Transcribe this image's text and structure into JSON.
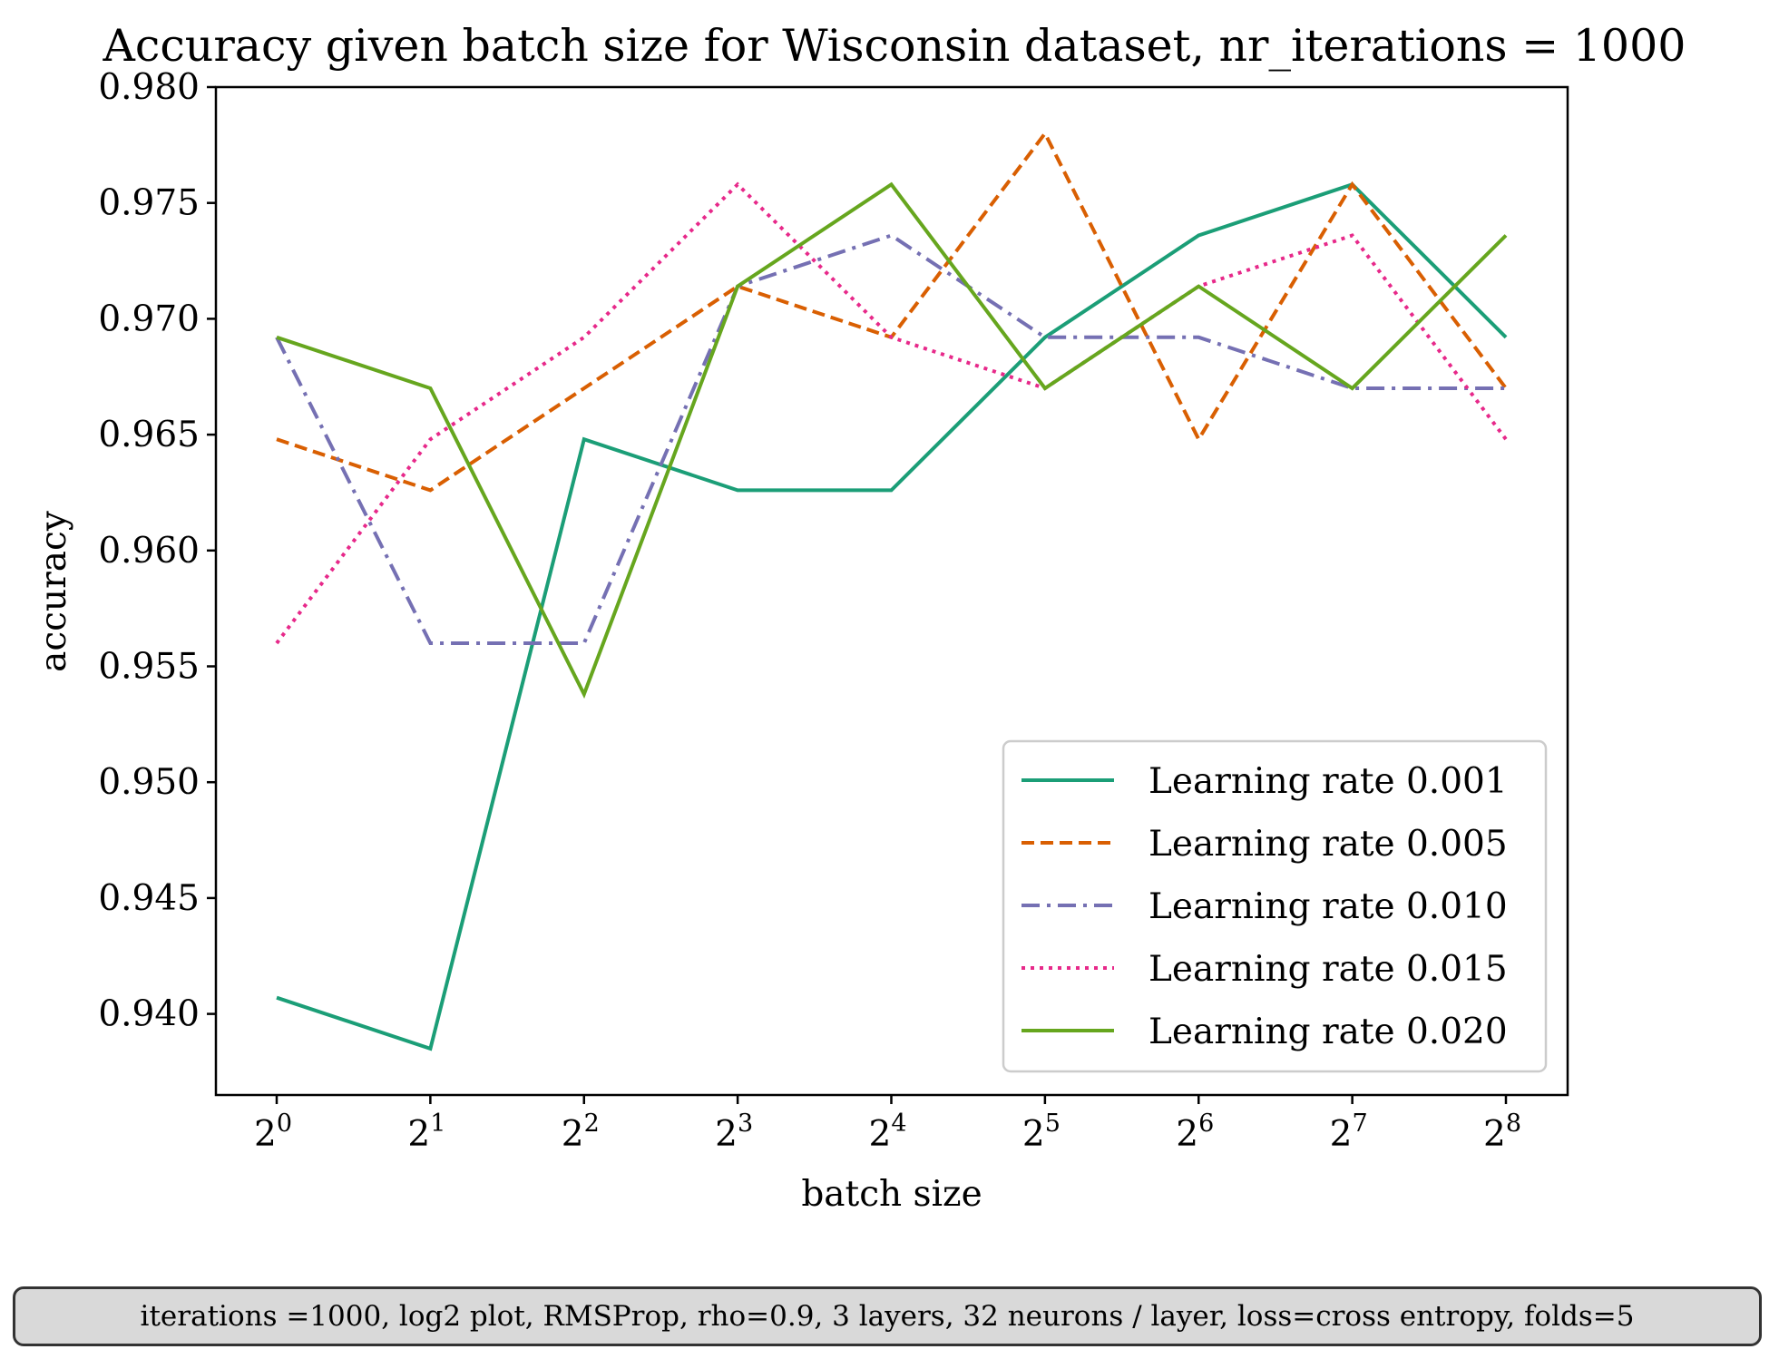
{
  "chart_data": {
    "type": "line",
    "title": "Accuracy given batch size for Wisconsin dataset, nr_iterations = 1000",
    "xlabel": "batch size",
    "ylabel": "accuracy",
    "x_scale": "log2",
    "x": [
      1,
      2,
      4,
      8,
      16,
      32,
      64,
      128,
      256
    ],
    "x_tick_labels": [
      {
        "base": "2",
        "exp": "0"
      },
      {
        "base": "2",
        "exp": "1"
      },
      {
        "base": "2",
        "exp": "2"
      },
      {
        "base": "2",
        "exp": "3"
      },
      {
        "base": "2",
        "exp": "4"
      },
      {
        "base": "2",
        "exp": "5"
      },
      {
        "base": "2",
        "exp": "6"
      },
      {
        "base": "2",
        "exp": "7"
      },
      {
        "base": "2",
        "exp": "8"
      }
    ],
    "ylim": [
      0.9365,
      0.98
    ],
    "y_ticks": [
      "0.940",
      "0.945",
      "0.950",
      "0.955",
      "0.960",
      "0.965",
      "0.970",
      "0.975",
      "0.980"
    ],
    "grid": false,
    "legend_position": "lower-right",
    "series": [
      {
        "name": "Learning rate 0.001",
        "color": "#1b9e77",
        "dash": "solid",
        "values": [
          0.9407,
          0.9385,
          0.9648,
          0.9626,
          0.9626,
          0.9692,
          0.9736,
          0.9758,
          0.9692
        ]
      },
      {
        "name": "Learning rate 0.005",
        "color": "#d95f02",
        "dash": "dashed",
        "values": [
          0.9648,
          0.9626,
          0.967,
          0.9714,
          0.9692,
          0.978,
          0.9648,
          0.9758,
          0.967
        ]
      },
      {
        "name": "Learning rate 0.010",
        "color": "#7570b3",
        "dash": "dashdot",
        "values": [
          0.9692,
          0.956,
          0.956,
          0.9714,
          0.9736,
          0.9692,
          0.9692,
          0.967,
          0.967
        ]
      },
      {
        "name": "Learning rate 0.015",
        "color": "#e7298a",
        "dash": "dotted",
        "values": [
          0.956,
          0.9648,
          0.9692,
          0.9758,
          0.9692,
          0.967,
          0.9714,
          0.9736,
          0.9648
        ]
      },
      {
        "name": "Learning rate 0.020",
        "color": "#66a61e",
        "dash": "solid",
        "values": [
          0.9692,
          0.967,
          0.9538,
          0.9714,
          0.9758,
          0.967,
          0.9714,
          0.967,
          0.9736
        ]
      }
    ]
  },
  "caption": "iterations =1000, log2 plot, RMSProp, rho=0.9, 3 layers, 32 neurons / layer, loss=cross entropy, folds=5"
}
